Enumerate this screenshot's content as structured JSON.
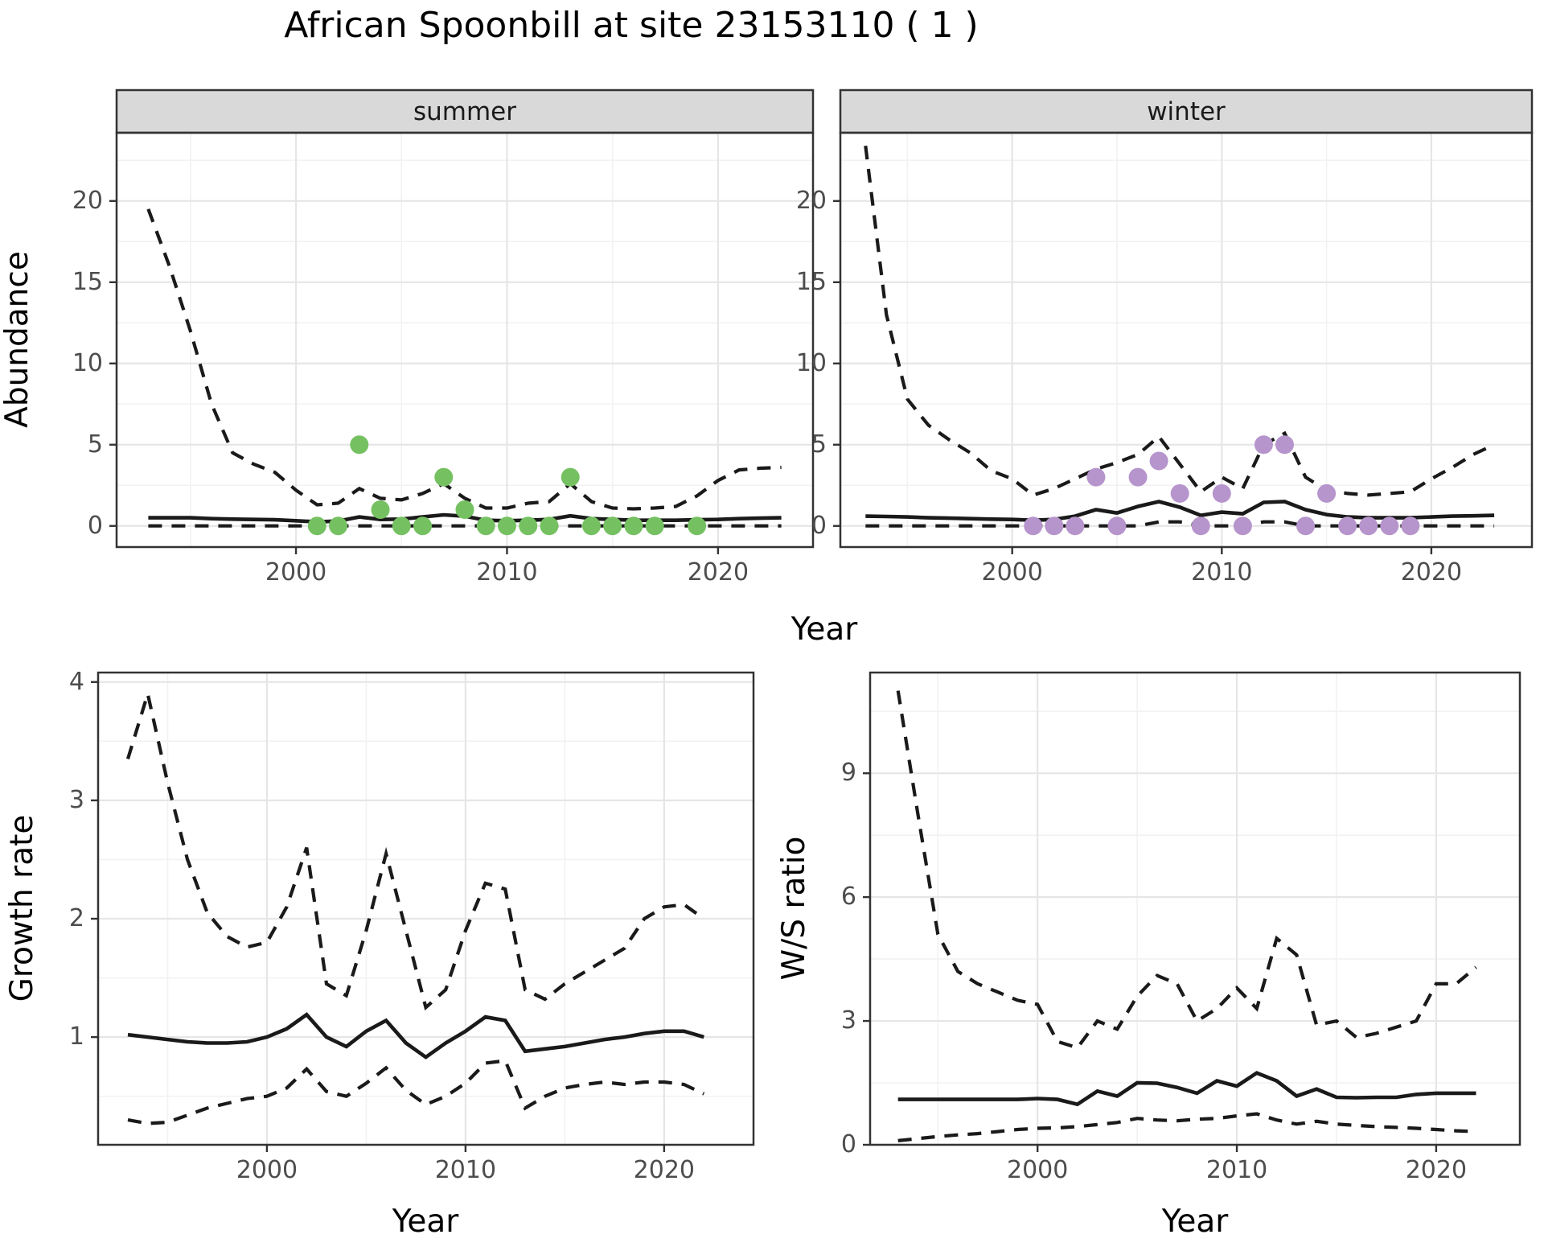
{
  "title": "African Spoonbill at site 23153110 ( 1 )",
  "labels": {
    "year": "Year",
    "abundance": "Abundance",
    "growth_rate": "Growth rate",
    "ws_ratio": "W/S ratio"
  },
  "colors": {
    "summer_points": "#75c162",
    "winter_points": "#b694cc",
    "line": "#1a1a1a",
    "strip_bg": "#d9d9d9",
    "panel_border": "#333333",
    "grid_major": "#e6e6e6",
    "grid_minor": "#f2f2f2",
    "tick_text": "#4d4d4d"
  },
  "chart_data": [
    {
      "type": "line",
      "facet": "summer",
      "xlabel": "Year",
      "ylabel": "Abundance",
      "xlim": [
        1991.5,
        2024.5
      ],
      "ylim": [
        -1.3,
        24.2
      ],
      "x_ticks": [
        2000,
        2010,
        2020
      ],
      "x_minor": [
        1995,
        2005,
        2015
      ],
      "y_ticks": [
        0,
        5,
        10,
        15,
        20
      ],
      "y_minor": [
        2.5,
        7.5,
        12.5,
        17.5,
        22.5
      ],
      "years": [
        1993,
        1994,
        1995,
        1996,
        1997,
        1998,
        1999,
        2000,
        2001,
        2002,
        2003,
        2004,
        2005,
        2006,
        2007,
        2008,
        2009,
        2010,
        2011,
        2012,
        2013,
        2014,
        2015,
        2016,
        2017,
        2018,
        2019,
        2020,
        2021,
        2022,
        2023
      ],
      "series": [
        {
          "name": "upper_ci",
          "style": "dashed",
          "values": [
            19.5,
            16.0,
            12.0,
            7.5,
            4.5,
            3.8,
            3.3,
            2.2,
            1.3,
            1.4,
            2.3,
            1.7,
            1.6,
            2.0,
            2.6,
            1.7,
            1.1,
            1.1,
            1.4,
            1.5,
            2.6,
            1.5,
            1.1,
            1.05,
            1.1,
            1.2,
            1.85,
            2.8,
            3.45,
            3.55,
            3.6
          ]
        },
        {
          "name": "median",
          "style": "solid",
          "values": [
            0.5,
            0.5,
            0.5,
            0.45,
            0.42,
            0.4,
            0.38,
            0.32,
            0.25,
            0.3,
            0.55,
            0.4,
            0.42,
            0.55,
            0.68,
            0.6,
            0.35,
            0.32,
            0.35,
            0.4,
            0.62,
            0.45,
            0.4,
            0.35,
            0.35,
            0.35,
            0.38,
            0.4,
            0.45,
            0.48,
            0.5
          ]
        },
        {
          "name": "lower_ci",
          "style": "dashed",
          "values": [
            0,
            0,
            0,
            0,
            0,
            0,
            0,
            0,
            0,
            0,
            0,
            0,
            0,
            0,
            0,
            0,
            0,
            0,
            0,
            0,
            0,
            0,
            0,
            0,
            0,
            0,
            0,
            0,
            0,
            0,
            0
          ]
        }
      ],
      "observations": [
        [
          2001,
          0
        ],
        [
          2002,
          0
        ],
        [
          2003,
          5
        ],
        [
          2004,
          1
        ],
        [
          2005,
          0
        ],
        [
          2006,
          0
        ],
        [
          2007,
          3
        ],
        [
          2008,
          1
        ],
        [
          2009,
          0
        ],
        [
          2010,
          0
        ],
        [
          2011,
          0
        ],
        [
          2012,
          0
        ],
        [
          2013,
          3
        ],
        [
          2014,
          0
        ],
        [
          2015,
          0
        ],
        [
          2016,
          0
        ],
        [
          2017,
          0
        ],
        [
          2019,
          0
        ]
      ],
      "point_color": "#75c162"
    },
    {
      "type": "line",
      "facet": "winter",
      "xlabel": "Year",
      "ylabel": "Abundance",
      "xlim": [
        1991.8,
        2024.8
      ],
      "ylim": [
        -1.3,
        24.2
      ],
      "x_ticks": [
        2000,
        2010,
        2020
      ],
      "x_minor": [
        1995,
        2005,
        2015
      ],
      "y_ticks": [
        0,
        5,
        10,
        15,
        20
      ],
      "y_minor": [
        2.5,
        7.5,
        12.5,
        17.5,
        22.5
      ],
      "years": [
        1993,
        1994,
        1995,
        1996,
        1997,
        1998,
        1999,
        2000,
        2001,
        2002,
        2003,
        2004,
        2005,
        2006,
        2007,
        2008,
        2009,
        2010,
        2011,
        2012,
        2013,
        2014,
        2015,
        2016,
        2017,
        2018,
        2019,
        2020,
        2021,
        2022,
        2023
      ],
      "series": [
        {
          "name": "upper_ci",
          "style": "dashed",
          "values": [
            23.4,
            13.0,
            7.8,
            6.2,
            5.3,
            4.5,
            3.4,
            2.9,
            1.9,
            2.3,
            2.9,
            3.5,
            3.9,
            4.4,
            5.5,
            3.8,
            2.1,
            3.0,
            2.3,
            5.0,
            5.7,
            3.0,
            2.2,
            2.0,
            1.9,
            2.0,
            2.1,
            2.9,
            3.6,
            4.4,
            5.0
          ]
        },
        {
          "name": "median",
          "style": "solid",
          "values": [
            0.6,
            0.58,
            0.55,
            0.5,
            0.48,
            0.45,
            0.42,
            0.4,
            0.35,
            0.4,
            0.6,
            1.0,
            0.8,
            1.2,
            1.5,
            1.15,
            0.65,
            0.85,
            0.75,
            1.45,
            1.5,
            1.0,
            0.7,
            0.55,
            0.5,
            0.5,
            0.5,
            0.55,
            0.6,
            0.62,
            0.65
          ]
        },
        {
          "name": "lower_ci",
          "style": "dashed",
          "values": [
            0,
            0,
            0,
            0,
            0,
            0,
            0,
            0,
            0,
            0,
            0,
            0,
            0,
            0,
            0.25,
            0.25,
            0,
            0,
            0,
            0.25,
            0.25,
            0,
            0,
            0,
            0,
            0,
            0,
            0,
            0,
            0,
            0
          ]
        }
      ],
      "observations": [
        [
          2001,
          0
        ],
        [
          2002,
          0
        ],
        [
          2003,
          0
        ],
        [
          2004,
          3
        ],
        [
          2005,
          0
        ],
        [
          2006,
          3
        ],
        [
          2007,
          4
        ],
        [
          2008,
          2
        ],
        [
          2009,
          0
        ],
        [
          2010,
          2
        ],
        [
          2011,
          0
        ],
        [
          2012,
          5
        ],
        [
          2013,
          5
        ],
        [
          2014,
          0
        ],
        [
          2015,
          2
        ],
        [
          2016,
          0
        ],
        [
          2017,
          0
        ],
        [
          2018,
          0
        ],
        [
          2019,
          0
        ]
      ],
      "point_color": "#b694cc"
    },
    {
      "type": "line",
      "facet": null,
      "xlabel": "Year",
      "ylabel": "Growth rate",
      "xlim": [
        1991.5,
        2024.5
      ],
      "ylim": [
        0.09,
        4.08
      ],
      "x_ticks": [
        2000,
        2010,
        2020
      ],
      "x_minor": [
        1995,
        2005,
        2015
      ],
      "y_ticks": [
        1,
        2,
        3,
        4
      ],
      "y_minor": [
        0.5,
        1.5,
        2.5,
        3.5
      ],
      "years": [
        1993,
        1994,
        1995,
        1996,
        1997,
        1998,
        1999,
        2000,
        2001,
        2002,
        2003,
        2004,
        2005,
        2006,
        2007,
        2008,
        2009,
        2010,
        2011,
        2012,
        2013,
        2014,
        2015,
        2016,
        2017,
        2018,
        2019,
        2020,
        2021,
        2022
      ],
      "series": [
        {
          "name": "upper_ci",
          "style": "dashed",
          "values": [
            3.35,
            3.9,
            3.15,
            2.5,
            2.05,
            1.85,
            1.76,
            1.8,
            2.1,
            2.6,
            1.45,
            1.35,
            1.9,
            2.55,
            1.9,
            1.25,
            1.4,
            1.9,
            2.3,
            2.25,
            1.4,
            1.32,
            1.45,
            1.55,
            1.65,
            1.75,
            2.0,
            2.1,
            2.12,
            2.0
          ]
        },
        {
          "name": "median",
          "style": "solid",
          "values": [
            1.02,
            1.0,
            0.98,
            0.96,
            0.95,
            0.95,
            0.96,
            1.0,
            1.07,
            1.19,
            1.0,
            0.92,
            1.05,
            1.14,
            0.95,
            0.83,
            0.95,
            1.05,
            1.17,
            1.14,
            0.88,
            0.9,
            0.92,
            0.95,
            0.98,
            1.0,
            1.03,
            1.05,
            1.05,
            1.0
          ]
        },
        {
          "name": "lower_ci",
          "style": "dashed",
          "values": [
            0.3,
            0.27,
            0.28,
            0.34,
            0.4,
            0.44,
            0.48,
            0.5,
            0.57,
            0.73,
            0.54,
            0.5,
            0.61,
            0.74,
            0.55,
            0.43,
            0.5,
            0.61,
            0.78,
            0.8,
            0.4,
            0.5,
            0.57,
            0.6,
            0.62,
            0.6,
            0.62,
            0.62,
            0.6,
            0.52
          ]
        }
      ],
      "observations": [],
      "point_color": null
    },
    {
      "type": "line",
      "facet": null,
      "xlabel": "Year",
      "ylabel": "W/S ratio",
      "xlim": [
        1991.6,
        2024.2
      ],
      "ylim": [
        0,
        11.44
      ],
      "x_ticks": [
        2000,
        2010,
        2020
      ],
      "x_minor": [
        1995,
        2005,
        2015
      ],
      "y_ticks": [
        0,
        3,
        6,
        9
      ],
      "y_minor": [
        1.5,
        4.5,
        7.5,
        10.5
      ],
      "years": [
        1993,
        1994,
        1995,
        1996,
        1997,
        1998,
        1999,
        2000,
        2001,
        2002,
        2003,
        2004,
        2005,
        2006,
        2007,
        2008,
        2009,
        2010,
        2011,
        2012,
        2013,
        2014,
        2015,
        2016,
        2017,
        2018,
        2019,
        2020,
        2021,
        2022
      ],
      "series": [
        {
          "name": "upper_ci",
          "style": "dashed",
          "values": [
            11.0,
            8.0,
            5.1,
            4.2,
            3.9,
            3.7,
            3.5,
            3.4,
            2.5,
            2.35,
            3.0,
            2.8,
            3.6,
            4.1,
            3.9,
            3.0,
            3.3,
            3.8,
            3.3,
            5.0,
            4.6,
            2.9,
            3.0,
            2.6,
            2.7,
            2.85,
            3.0,
            3.9,
            3.9,
            4.3
          ]
        },
        {
          "name": "median",
          "style": "solid",
          "values": [
            1.1,
            1.1,
            1.1,
            1.1,
            1.1,
            1.1,
            1.1,
            1.12,
            1.1,
            0.98,
            1.3,
            1.18,
            1.5,
            1.49,
            1.39,
            1.25,
            1.55,
            1.42,
            1.74,
            1.55,
            1.18,
            1.35,
            1.15,
            1.14,
            1.15,
            1.15,
            1.22,
            1.25,
            1.25,
            1.25
          ]
        },
        {
          "name": "lower_ci",
          "style": "dashed",
          "values": [
            0.1,
            0.15,
            0.2,
            0.24,
            0.27,
            0.32,
            0.37,
            0.4,
            0.41,
            0.44,
            0.49,
            0.54,
            0.64,
            0.6,
            0.58,
            0.62,
            0.64,
            0.7,
            0.75,
            0.6,
            0.5,
            0.57,
            0.5,
            0.47,
            0.44,
            0.42,
            0.4,
            0.37,
            0.34,
            0.32
          ]
        }
      ],
      "observations": [],
      "point_color": null
    }
  ]
}
